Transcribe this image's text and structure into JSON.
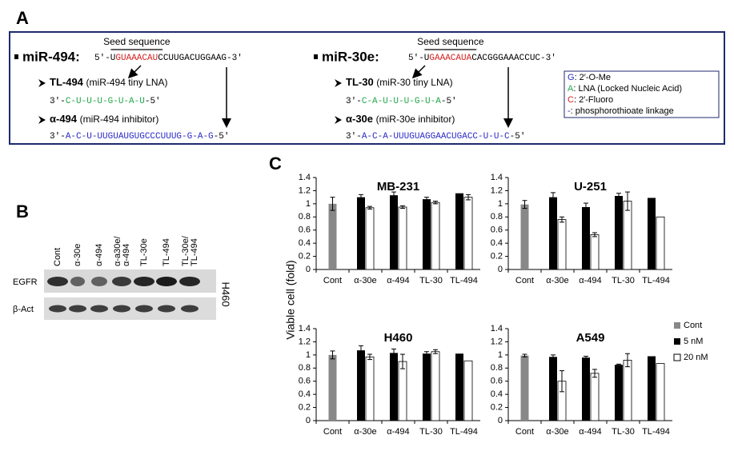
{
  "panel_labels": [
    "A",
    "B",
    "C"
  ],
  "panel_a": {
    "mirnas": [
      {
        "name": "miR-494:",
        "seed_label": "Seed sequence",
        "sequence": [
          "5′-U",
          "GUAAACAU",
          "CCUUGACUGGAAG-3′"
        ],
        "oligos": [
          {
            "name": "TL-494",
            "desc": "(miR-494 tiny LNA)",
            "sequence": [
              "3′-",
              "C-U-U-U-G-U-A-U",
              "-5′"
            ]
          },
          {
            "name": "α-494",
            "desc": "(miR-494 inhibitor)",
            "sequence": [
              "3′-",
              "A-C-U-UUGUAUGUGCCCUUUG-G-A-G",
              "-5′"
            ]
          }
        ]
      },
      {
        "name": "miR-30e:",
        "seed_label": "Seed sequence",
        "sequence": [
          "5′-U",
          "GAAACAUA",
          "CACGGGAAACCUC-3′"
        ],
        "oligos": [
          {
            "name": "TL-30",
            "desc": "(miR-30 tiny LNA)",
            "sequence": [
              "3′-",
              "C-A-U-U-U-G-U-A",
              "-5′"
            ]
          },
          {
            "name": "α-30e",
            "desc": "(miR-30e inhibitor)",
            "sequence": [
              "3′-",
              "A-C-A-UUUGUAGGAACUGACC-U-U-C",
              "-5′"
            ]
          }
        ]
      }
    ],
    "key": [
      {
        "symbol": "G",
        "text": ": 2′-O-Me"
      },
      {
        "symbol": "A",
        "text": ": LNA (Locked Nucleic Acid)"
      },
      {
        "symbol": "C",
        "text": ": 2′-Fluoro"
      },
      {
        "symbol": "-",
        "text": ": phosphorothioate linkage"
      }
    ]
  },
  "panel_b": {
    "lanes": [
      [
        "Cont"
      ],
      [
        "α-30e"
      ],
      [
        "α-494"
      ],
      [
        "α-a30e/",
        "α-494"
      ],
      [
        "TL-30e"
      ],
      [
        "TL-494"
      ],
      [
        "TL-30e/",
        "TL-494"
      ]
    ],
    "rows": [
      "EGFR",
      "β-Act"
    ],
    "cell_line": "H460"
  },
  "y_label": "Viable cell (fold)",
  "legend": [
    "Cont",
    "5 nM",
    "20 nM"
  ],
  "chart_data": [
    {
      "type": "bar",
      "title": "MB-231",
      "categories": [
        "Cont",
        "α-30e",
        "α-494",
        "TL-30",
        "TL-494"
      ],
      "ylim": [
        0,
        1.4
      ],
      "yticks": [
        0,
        0.2,
        0.4,
        0.6,
        0.8,
        1,
        1.2,
        1.4
      ],
      "series": [
        {
          "color": "#888888",
          "values": [
            1.0,
            null,
            null,
            null,
            null
          ],
          "errors": [
            0.1,
            null,
            null,
            null,
            null
          ]
        },
        {
          "color": "#000000",
          "values": [
            null,
            1.1,
            1.13,
            1.07,
            1.16
          ],
          "errors": [
            null,
            0.04,
            0.05,
            0.03,
            null
          ]
        },
        {
          "color": "#ffffff",
          "values": [
            null,
            0.94,
            0.95,
            1.02,
            1.1
          ],
          "errors": [
            null,
            0.02,
            0.02,
            0.02,
            0.04
          ]
        }
      ]
    },
    {
      "type": "bar",
      "title": "U-251",
      "categories": [
        "Cont",
        "α-30e",
        "α-494",
        "TL-30",
        "TL-494"
      ],
      "ylim": [
        0,
        1.4
      ],
      "yticks": [
        0,
        0.2,
        0.4,
        0.6,
        0.8,
        1,
        1.2,
        1.4
      ],
      "series": [
        {
          "color": "#888888",
          "values": [
            0.99,
            null,
            null,
            null,
            null
          ],
          "errors": [
            0.06,
            null,
            null,
            null,
            null
          ]
        },
        {
          "color": "#000000",
          "values": [
            null,
            1.1,
            0.95,
            1.12,
            1.09
          ],
          "errors": [
            null,
            0.07,
            0.06,
            0.04,
            null
          ]
        },
        {
          "color": "#ffffff",
          "values": [
            null,
            0.76,
            0.53,
            1.04,
            0.8
          ],
          "errors": [
            null,
            0.04,
            0.03,
            0.14,
            null
          ]
        }
      ]
    },
    {
      "type": "bar",
      "title": "H460",
      "categories": [
        "Cont",
        "α-30e",
        "α-494",
        "TL-30",
        "TL-494"
      ],
      "ylim": [
        0,
        1.4
      ],
      "yticks": [
        0,
        0.2,
        0.4,
        0.6,
        0.8,
        1,
        1.2,
        1.4
      ],
      "series": [
        {
          "color": "#888888",
          "values": [
            1.0,
            null,
            null,
            null,
            null
          ],
          "errors": [
            0.06,
            null,
            null,
            null,
            null
          ]
        },
        {
          "color": "#000000",
          "values": [
            null,
            1.07,
            1.03,
            1.02,
            1.02
          ],
          "errors": [
            null,
            0.07,
            0.06,
            0.03,
            null
          ]
        },
        {
          "color": "#ffffff",
          "values": [
            null,
            0.97,
            0.9,
            1.05,
            0.91
          ],
          "errors": [
            null,
            0.04,
            0.11,
            0.03,
            null
          ]
        }
      ]
    },
    {
      "type": "bar",
      "title": "A549",
      "categories": [
        "Cont",
        "α-30e",
        "α-494",
        "TL-30",
        "TL-494"
      ],
      "ylim": [
        0,
        1.4
      ],
      "yticks": [
        0,
        0.2,
        0.4,
        0.6,
        0.8,
        1,
        1.2,
        1.4
      ],
      "series": [
        {
          "color": "#888888",
          "values": [
            0.99,
            null,
            null,
            null,
            null
          ],
          "errors": [
            0.02,
            null,
            null,
            null,
            null
          ]
        },
        {
          "color": "#000000",
          "values": [
            null,
            0.97,
            0.96,
            0.85,
            0.98
          ],
          "errors": [
            null,
            0.03,
            0.02,
            0.01,
            null
          ]
        },
        {
          "color": "#ffffff",
          "values": [
            null,
            0.6,
            0.72,
            0.92,
            0.87
          ],
          "errors": [
            null,
            0.16,
            0.06,
            0.1,
            null
          ]
        }
      ]
    }
  ]
}
